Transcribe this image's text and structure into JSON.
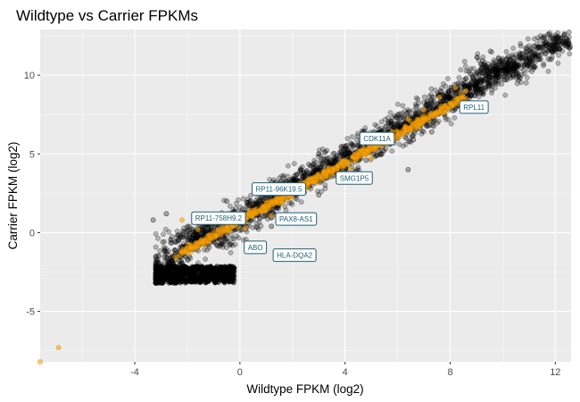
{
  "chart_data": {
    "type": "scatter",
    "title": "Wildtype vs Carrier FPKMs",
    "xlabel": "Wildtype FPKM (log2)",
    "ylabel": "Carrier FPKM (log2)",
    "xlim": [
      -7.6,
      12.6
    ],
    "ylim": [
      -8.2,
      12.9
    ],
    "x_ticks": [
      -4,
      0,
      4,
      8,
      12
    ],
    "y_ticks": [
      -5,
      0,
      5,
      10
    ],
    "grid": true,
    "legend": "none",
    "colors": {
      "background": "#ebebeb",
      "grid": "#ffffff",
      "default_points": "#000000",
      "highlighted_points": "#ffa500",
      "label_text": "#1f5f78",
      "label_border": "#1f5f78"
    },
    "series": [
      {
        "color": "#000000",
        "description": "dense cloud of points along the diagonal, floor near y = -3.2",
        "floor": -3.2,
        "points": [
          [
            -3.2,
            -3.2
          ],
          [
            -3.0,
            -2.6
          ],
          [
            -2.6,
            -1.8
          ],
          [
            -2.2,
            -0.9
          ],
          [
            -1.8,
            -0.3
          ],
          [
            -1.4,
            0.2
          ],
          [
            -0.9,
            -0.4
          ],
          [
            -0.5,
            0.5
          ],
          [
            0.0,
            0.9
          ],
          [
            0.5,
            1.4
          ],
          [
            1.0,
            1.9
          ],
          [
            1.5,
            2.4
          ],
          [
            2.0,
            2.9
          ],
          [
            2.5,
            3.4
          ],
          [
            3.0,
            3.8
          ],
          [
            3.5,
            4.3
          ],
          [
            4.0,
            4.8
          ],
          [
            4.5,
            5.2
          ],
          [
            5.0,
            5.7
          ],
          [
            5.5,
            6.1
          ],
          [
            6.0,
            6.5
          ],
          [
            6.5,
            7.0
          ],
          [
            7.0,
            7.4
          ],
          [
            7.5,
            8.0
          ],
          [
            8.0,
            8.5
          ],
          [
            8.5,
            9.0
          ],
          [
            9.0,
            9.4
          ],
          [
            9.5,
            9.9
          ],
          [
            10.0,
            10.3
          ],
          [
            10.5,
            10.6
          ],
          [
            11.0,
            11.1
          ],
          [
            11.8,
            11.9
          ],
          [
            12.3,
            12.1
          ],
          [
            9.6,
            10.6
          ],
          [
            10.2,
            10.5
          ],
          [
            -3.3,
            0.8
          ],
          [
            -2.8,
            1.2
          ],
          [
            -0.5,
            2.0
          ],
          [
            1.2,
            0.4
          ],
          [
            3.0,
            2.4
          ],
          [
            4.8,
            4.6
          ],
          [
            5.4,
            5.0
          ],
          [
            6.6,
            5.9
          ],
          [
            7.3,
            6.4
          ],
          [
            3.0,
            5.0
          ],
          [
            6.4,
            4.0
          ]
        ]
      },
      {
        "color": "#ffa500",
        "description": "highlighted genes along the diagonal",
        "points": [
          [
            -7.6,
            -8.2
          ],
          [
            -6.9,
            -7.3
          ],
          [
            -2.2,
            0.8
          ],
          [
            -1.6,
            0.2
          ],
          [
            -0.4,
            0.7
          ],
          [
            0.4,
            1.3
          ],
          [
            1.0,
            1.4
          ],
          [
            1.6,
            1.9
          ],
          [
            2.2,
            2.6
          ],
          [
            2.8,
            3.2
          ],
          [
            3.4,
            3.9
          ],
          [
            4.0,
            4.6
          ],
          [
            4.6,
            5.2
          ],
          [
            5.2,
            5.9
          ],
          [
            5.8,
            6.4
          ],
          [
            6.4,
            7.2
          ],
          [
            7.0,
            7.8
          ],
          [
            7.6,
            8.6
          ],
          [
            8.2,
            9.2
          ],
          [
            8.6,
            9.0
          ],
          [
            7.4,
            7.6
          ],
          [
            6.0,
            6.2
          ],
          [
            4.2,
            4.1
          ],
          [
            2.4,
            2.5
          ],
          [
            1.2,
            1.1
          ],
          [
            0.2,
            0.3
          ],
          [
            5.0,
            4.7
          ],
          [
            6.8,
            6.7
          ]
        ]
      }
    ],
    "annotations": [
      {
        "label": "RPL11",
        "x": 8.5,
        "y": 7.8
      },
      {
        "label": "CDK11A",
        "x": 4.7,
        "y": 5.8
      },
      {
        "label": "SMG1P5",
        "x": 3.8,
        "y": 3.3
      },
      {
        "label": "RP11-96K19.5",
        "x": 0.6,
        "y": 2.6
      },
      {
        "label": "RP11-758H9.2",
        "x": -1.7,
        "y": 0.75
      },
      {
        "label": "PAX8-AS1",
        "x": 1.5,
        "y": 0.7
      },
      {
        "label": "ABO",
        "x": 0.3,
        "y": -1.1
      },
      {
        "label": "HLA-DQA2",
        "x": 1.4,
        "y": -1.6
      }
    ]
  }
}
